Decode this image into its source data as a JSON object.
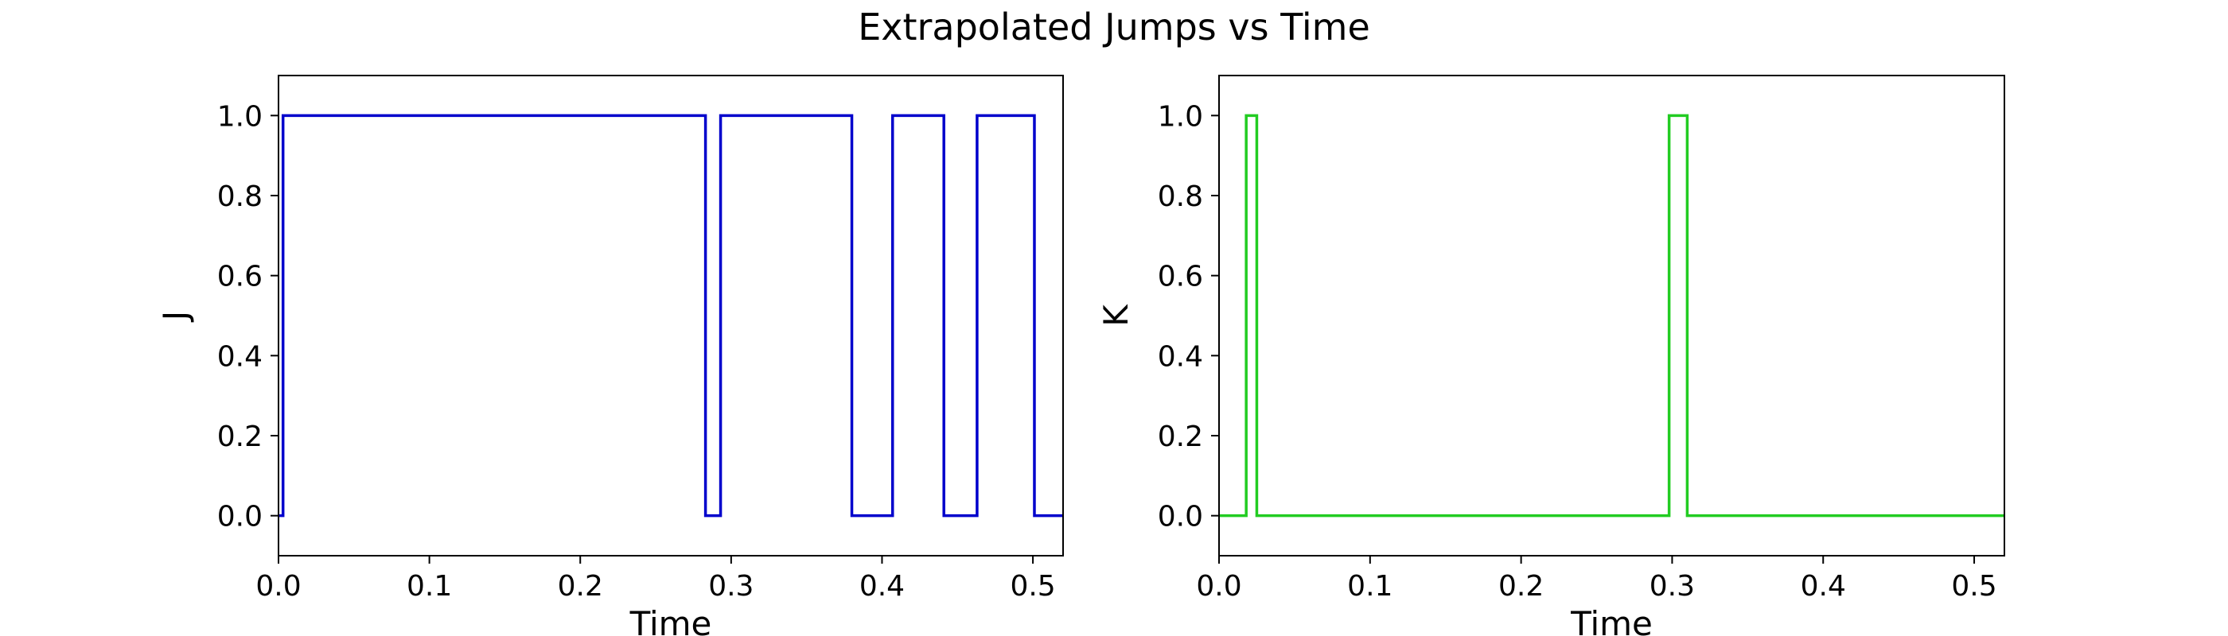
{
  "title": "Extrapolated Jumps vs Time",
  "chart_data": [
    {
      "type": "line",
      "step": "post",
      "xlabel": "Time",
      "ylabel": "J",
      "xlim": [
        0.0,
        0.52
      ],
      "ylim": [
        -0.1,
        1.1
      ],
      "xticks": [
        "0.0",
        "0.1",
        "0.2",
        "0.3",
        "0.4",
        "0.5"
      ],
      "yticks": [
        "0.0",
        "0.2",
        "0.4",
        "0.6",
        "0.8",
        "1.0"
      ],
      "grid": false,
      "series": [
        {
          "color": "#0000cc",
          "x": [
            0.0,
            0.003,
            0.283,
            0.293,
            0.38,
            0.407,
            0.441,
            0.463,
            0.501,
            0.52
          ],
          "y": [
            0,
            1,
            0,
            1,
            0,
            1,
            0,
            1,
            0,
            0
          ]
        }
      ]
    },
    {
      "type": "line",
      "step": "post",
      "xlabel": "Time",
      "ylabel": "K",
      "xlim": [
        0.0,
        0.52
      ],
      "ylim": [
        -0.1,
        1.1
      ],
      "xticks": [
        "0.0",
        "0.1",
        "0.2",
        "0.3",
        "0.4",
        "0.5"
      ],
      "yticks": [
        "0.0",
        "0.2",
        "0.4",
        "0.6",
        "0.8",
        "1.0"
      ],
      "grid": false,
      "series": [
        {
          "color": "#22cc22",
          "x": [
            0.0,
            0.018,
            0.025,
            0.298,
            0.31,
            0.52
          ],
          "y": [
            0,
            1,
            0,
            1,
            0,
            0
          ]
        }
      ]
    }
  ]
}
